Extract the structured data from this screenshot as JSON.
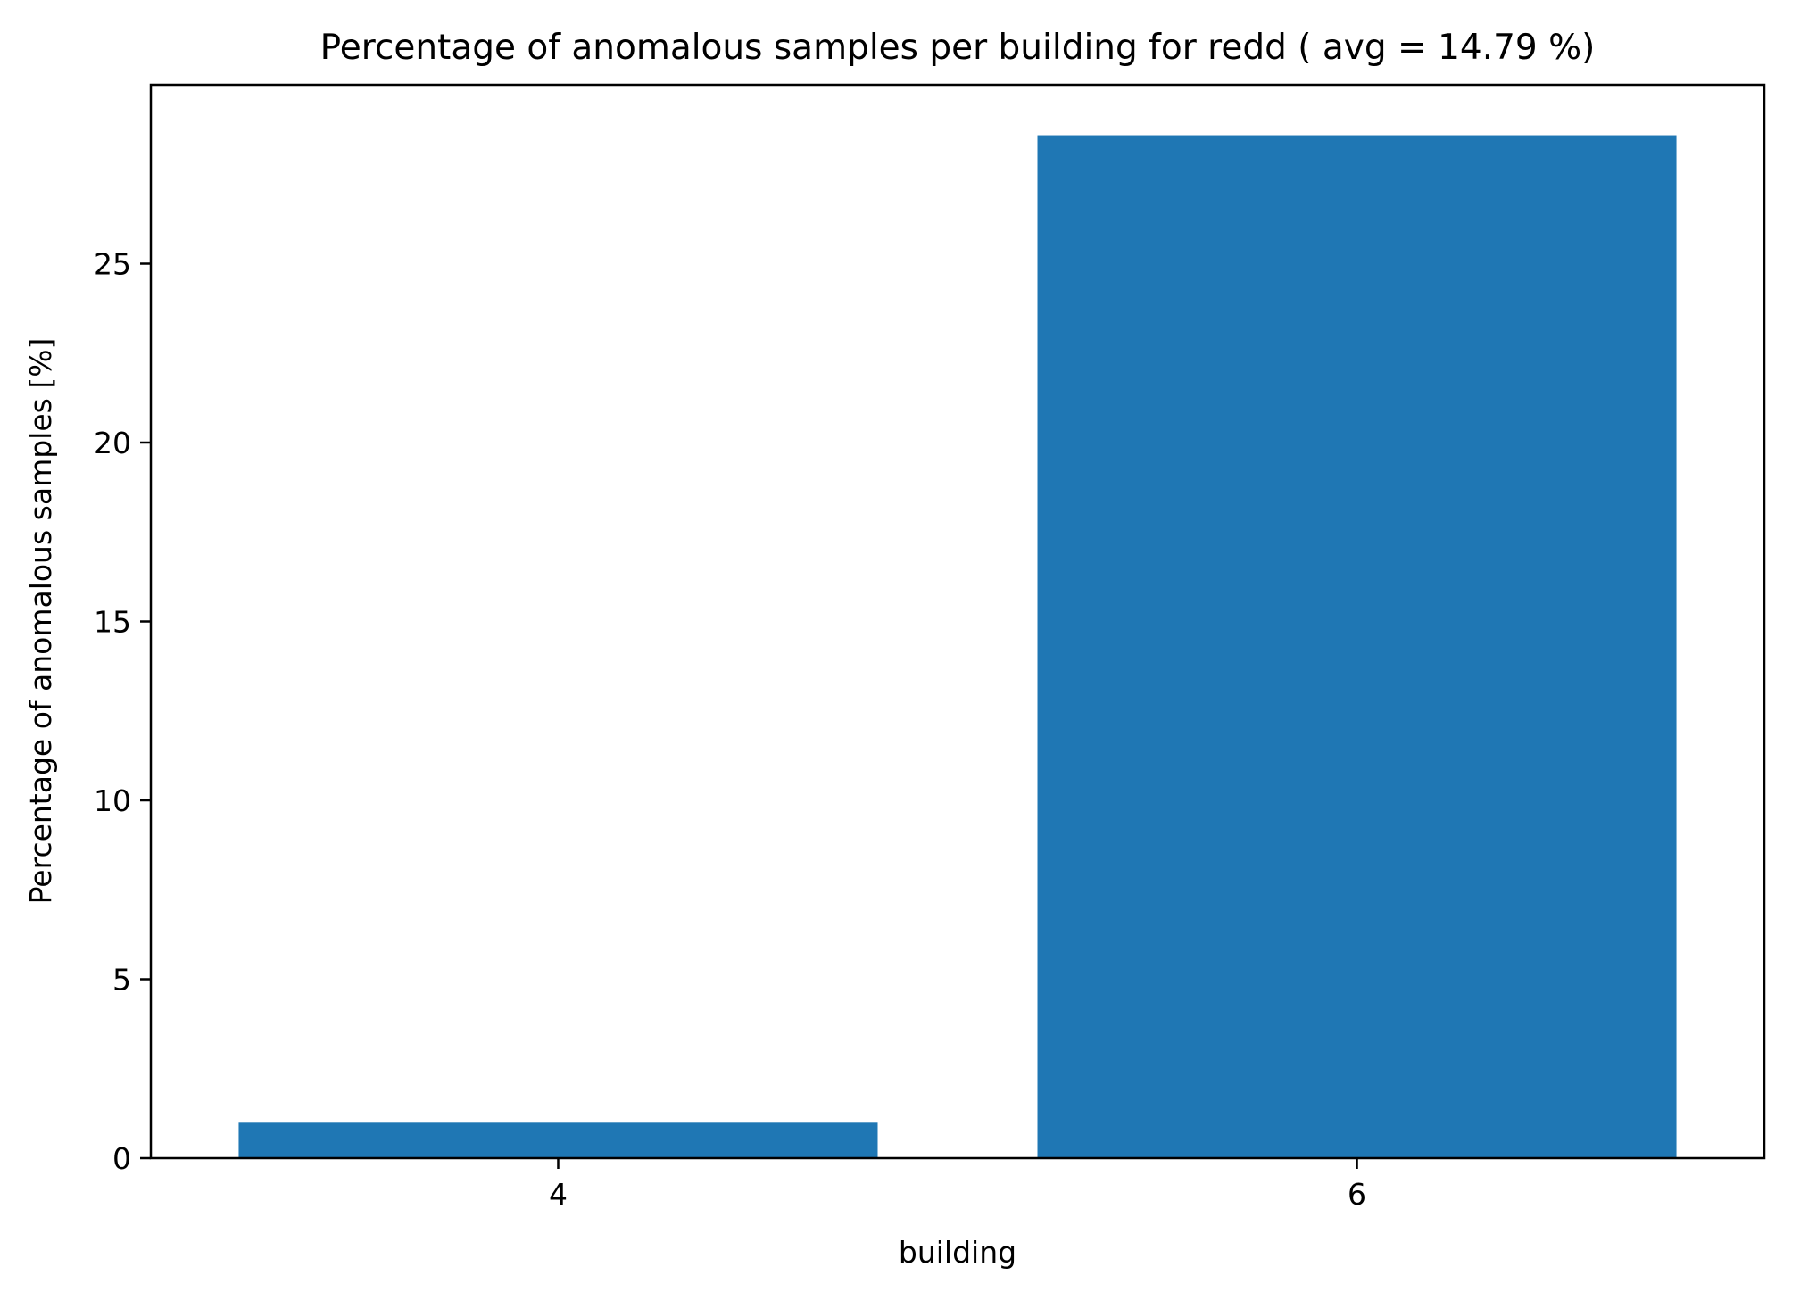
{
  "chart_data": {
    "type": "bar",
    "title": "Percentage of anomalous samples per building for redd ( avg = 14.79 %)",
    "xlabel": "building",
    "ylabel": "Percentage of anomalous samples [%]",
    "categories": [
      "4",
      "6"
    ],
    "values": [
      0.99,
      28.59
    ],
    "ylim": [
      0,
      30.0
    ],
    "yticks": [
      0,
      5,
      10,
      15,
      20,
      25
    ],
    "grid": false,
    "legend": "none",
    "colors": {
      "bar": "#1f77b4",
      "axes": "#000000",
      "background": "#ffffff"
    }
  }
}
